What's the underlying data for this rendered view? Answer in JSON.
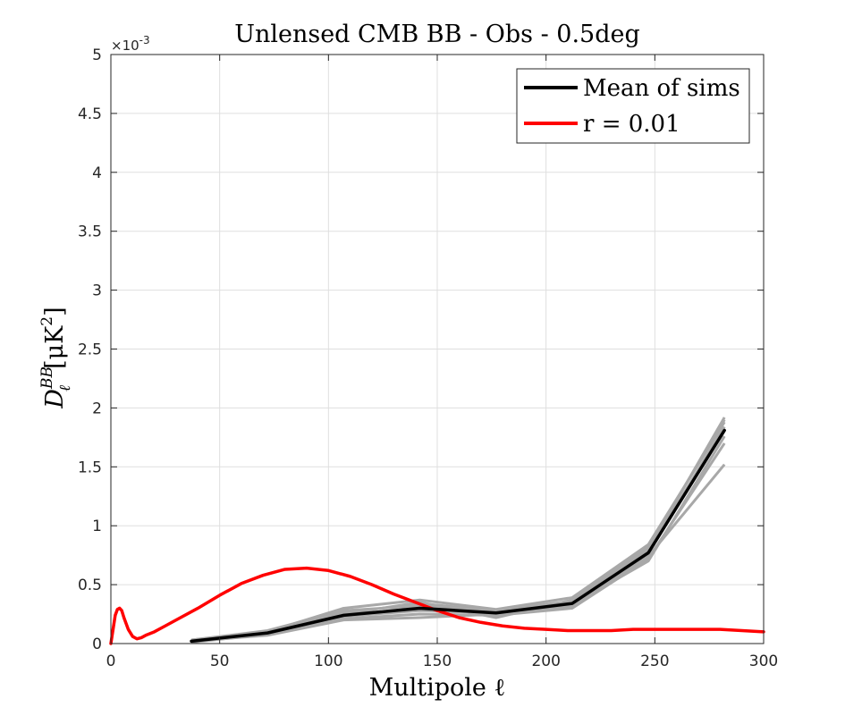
{
  "chart_data": {
    "type": "line",
    "title": "Unlensed CMB BB - Obs - 0.5deg",
    "xlabel": "Multipole ℓ",
    "ylabel_base": "D",
    "ylabel_sub": "ℓ",
    "ylabel_sup": "BB",
    "ylabel_unit": "[μK",
    "ylabel_unit_sup": "2",
    "ylabel_close": "]",
    "xlim": [
      0,
      300
    ],
    "ylim": [
      0,
      5
    ],
    "y_exponent_label": "×10",
    "y_exponent_power": "-3",
    "xticks": [
      0,
      50,
      100,
      150,
      200,
      250,
      300
    ],
    "xtick_labels": [
      "0",
      "50",
      "100",
      "150",
      "200",
      "250",
      "300"
    ],
    "yticks": [
      0,
      0.5,
      1,
      1.5,
      2,
      2.5,
      3,
      3.5,
      4,
      4.5,
      5
    ],
    "ytick_labels": [
      "0",
      "0.5",
      "1",
      "1.5",
      "2",
      "2.5",
      "3",
      "3.5",
      "4",
      "4.5",
      "5"
    ],
    "grid": true,
    "legend_position": "top-right",
    "series": [
      {
        "name": "Mean of sims",
        "color": "#000000",
        "x": [
          37,
          72,
          107,
          142,
          177,
          212,
          247,
          282
        ],
        "y": [
          0.02,
          0.09,
          0.24,
          0.3,
          0.26,
          0.34,
          0.77,
          1.81
        ]
      },
      {
        "name": "r = 0.01",
        "color": "#ff0000",
        "x": [
          0,
          1,
          2,
          3,
          4,
          5,
          6,
          8,
          10,
          12,
          14,
          16,
          20,
          25,
          30,
          40,
          50,
          60,
          70,
          80,
          90,
          100,
          110,
          120,
          130,
          140,
          150,
          160,
          170,
          180,
          190,
          200,
          210,
          220,
          230,
          240,
          250,
          260,
          270,
          280,
          290,
          300
        ],
        "y": [
          0,
          0.12,
          0.24,
          0.29,
          0.3,
          0.28,
          0.22,
          0.12,
          0.06,
          0.04,
          0.05,
          0.07,
          0.1,
          0.15,
          0.2,
          0.3,
          0.41,
          0.51,
          0.58,
          0.63,
          0.64,
          0.62,
          0.57,
          0.5,
          0.42,
          0.35,
          0.28,
          0.22,
          0.18,
          0.15,
          0.13,
          0.12,
          0.11,
          0.11,
          0.11,
          0.12,
          0.12,
          0.12,
          0.12,
          0.12,
          0.11,
          0.1
        ]
      }
    ],
    "simulation_bands": {
      "color": "#a8a8a8",
      "x": [
        37,
        72,
        107,
        142,
        177,
        212,
        247,
        282
      ],
      "realizations": [
        [
          0.02,
          0.09,
          0.26,
          0.34,
          0.28,
          0.36,
          0.8,
          1.92
        ],
        [
          0.03,
          0.1,
          0.3,
          0.37,
          0.29,
          0.39,
          0.84,
          1.88
        ],
        [
          0.01,
          0.08,
          0.21,
          0.25,
          0.24,
          0.3,
          0.72,
          1.7
        ],
        [
          0.02,
          0.07,
          0.2,
          0.22,
          0.25,
          0.31,
          0.74,
          1.52
        ],
        [
          0.03,
          0.11,
          0.28,
          0.32,
          0.27,
          0.35,
          0.78,
          1.84
        ],
        [
          0.02,
          0.09,
          0.23,
          0.28,
          0.26,
          0.33,
          0.7,
          1.76
        ],
        [
          0.02,
          0.1,
          0.25,
          0.35,
          0.22,
          0.37,
          0.82,
          1.9
        ]
      ]
    }
  }
}
